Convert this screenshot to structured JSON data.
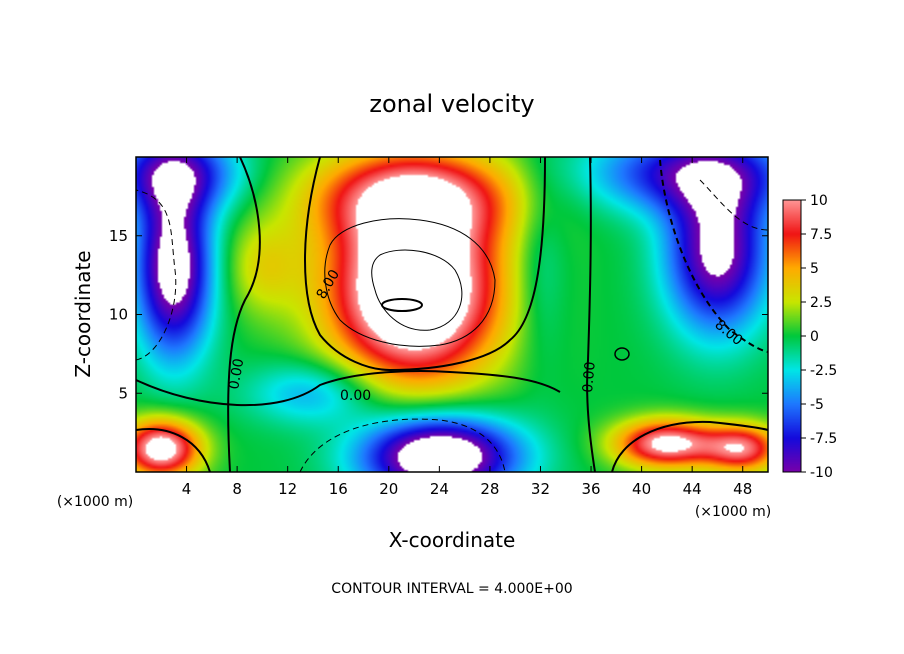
{
  "chart_data": {
    "type": "heatmap",
    "title": "zonal velocity",
    "xlabel": "X-coordinate",
    "ylabel": "Z-coordinate",
    "x_unit_left": "(×1000 m)",
    "x_unit_right": "(×1000 m)",
    "xlim": [
      0,
      50
    ],
    "ylim": [
      0,
      20
    ],
    "x_ticks": [
      "4",
      "8",
      "12",
      "16",
      "20",
      "24",
      "28",
      "32",
      "36",
      "40",
      "44",
      "48"
    ],
    "y_ticks": [
      "5",
      "10",
      "15"
    ],
    "colorbar": {
      "range": [
        -10,
        10
      ],
      "ticks": [
        "10",
        "7.5",
        "5",
        "2.5",
        "0",
        "-2.5",
        "-5",
        "-7.5",
        "-10"
      ]
    },
    "contour_labels": [
      "8.00",
      "0.00",
      "0.00",
      "0.00",
      "8.00"
    ],
    "footer": "CONTOUR INTERVAL = 4.000E+00",
    "field_features": [
      {
        "x": 22,
        "z": 11.5,
        "amp": 16,
        "sx": 6.5,
        "sz": 5.5
      },
      {
        "x": 22,
        "z": 17.5,
        "amp": 9,
        "sx": 8,
        "sz": 3
      },
      {
        "x": 3,
        "z": 13,
        "amp": -12,
        "sx": 3,
        "sz": 5.5
      },
      {
        "x": 46,
        "z": 14,
        "amp": -11,
        "sx": 4,
        "sz": 5
      },
      {
        "x": 3,
        "z": 19,
        "amp": -8,
        "sx": 5,
        "sz": 2.5
      },
      {
        "x": 44,
        "z": 19,
        "amp": -8,
        "sx": 8,
        "sz": 2.5
      },
      {
        "x": 2,
        "z": 1.5,
        "amp": 12,
        "sx": 3,
        "sz": 1.8
      },
      {
        "x": 42,
        "z": 1.8,
        "amp": 11,
        "sx": 4,
        "sz": 1.5
      },
      {
        "x": 48,
        "z": 1.5,
        "amp": 9,
        "sx": 3,
        "sz": 1.5
      },
      {
        "x": 24,
        "z": 1.0,
        "amp": -14,
        "sx": 6,
        "sz": 2.5
      },
      {
        "x": 14,
        "z": 5,
        "amp": -4,
        "sx": 5,
        "sz": 2
      },
      {
        "x": 32,
        "z": 13,
        "amp": -2,
        "sx": 2,
        "sz": 6
      },
      {
        "x": 10,
        "z": 13,
        "amp": 3,
        "sx": 3,
        "sz": 3
      }
    ]
  }
}
